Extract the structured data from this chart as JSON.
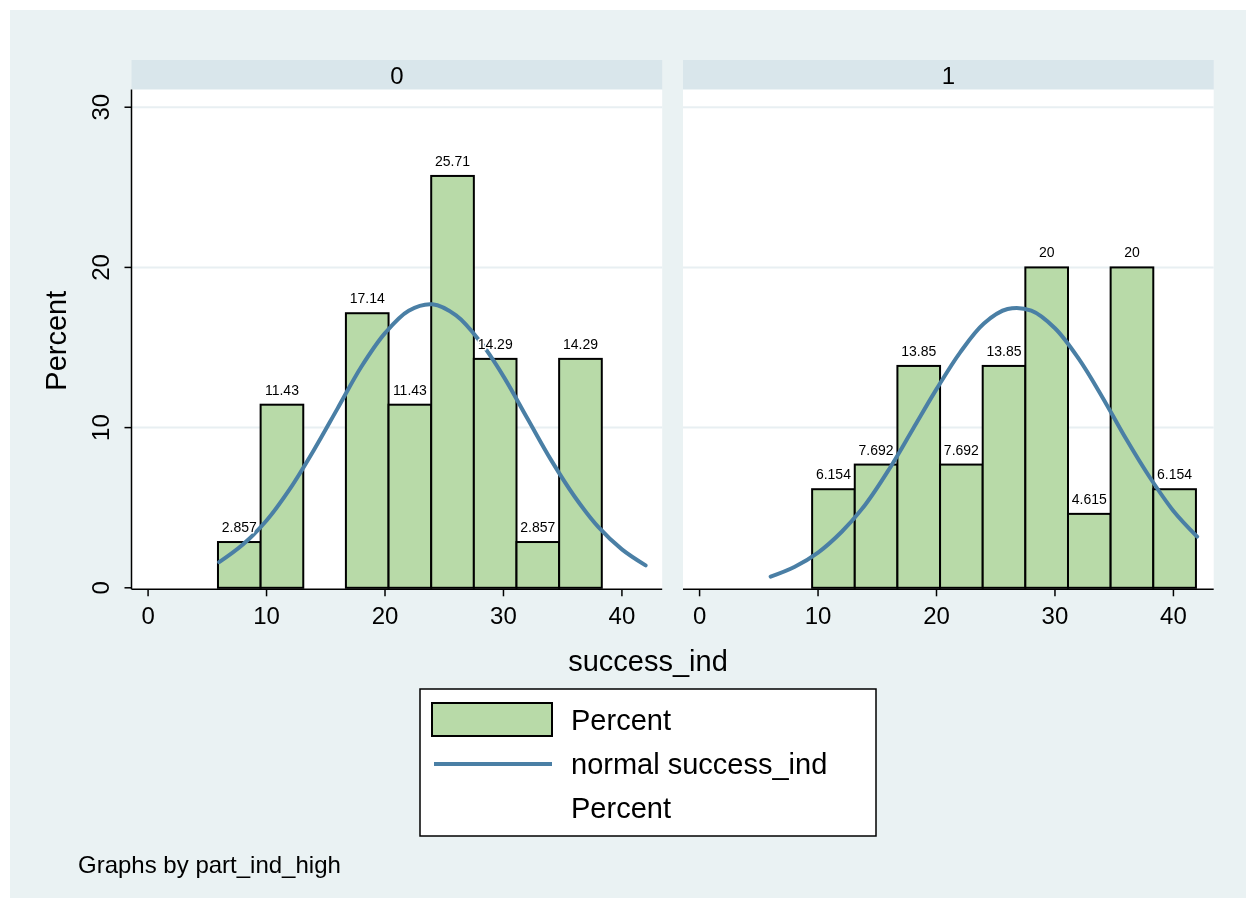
{
  "chart_data": [
    {
      "type": "histogram",
      "title": "0",
      "xlabel": "success_ind",
      "ylabel": "Percent",
      "annotations": [
        "Graphs by part_ind_high"
      ],
      "xlim": [
        -1.4,
        43.4
      ],
      "ylim": [
        0,
        31.1
      ],
      "xticks": [
        0,
        10,
        20,
        30,
        40
      ],
      "yticks": [
        0,
        10,
        20,
        30
      ],
      "grid": "y",
      "legend": "bottom",
      "bins": [
        5.9,
        9.5,
        13.1,
        16.7,
        20.3,
        23.9,
        27.5,
        31.1,
        34.7,
        38.3
      ],
      "series": [
        {
          "name": "Percent",
          "color": "#b8daa8",
          "data_labels": true,
          "values": [
            2.857,
            11.43,
            null,
            17.14,
            11.43,
            25.71,
            14.29,
            2.857,
            14.29
          ]
        },
        {
          "name": "normal success_ind",
          "type": "line",
          "color": "#4a7fa5",
          "x": [
            6,
            8,
            10,
            12,
            14,
            16,
            18,
            20,
            22,
            24,
            26,
            28,
            30,
            32,
            34,
            36,
            38,
            40,
            42
          ],
          "values": [
            1.6,
            2.7,
            4.2,
            6.2,
            8.6,
            11.2,
            13.8,
            15.9,
            17.3,
            17.7,
            17.0,
            15.4,
            13.2,
            10.6,
            8.0,
            5.7,
            3.8,
            2.4,
            1.4
          ]
        },
        {
          "name": "Percent",
          "type": "scatter",
          "marker": "none"
        }
      ]
    },
    {
      "type": "histogram",
      "title": "1",
      "xlim": [
        -1.4,
        43.4
      ],
      "ylim": [
        0,
        31.1
      ],
      "xticks": [
        0,
        10,
        20,
        30,
        40
      ],
      "yticks": [
        0,
        10,
        20,
        30
      ],
      "grid": "y",
      "tick_labels": "x",
      "bins": [
        9.5,
        13.1,
        16.7,
        20.3,
        23.9,
        27.5,
        31.1,
        34.7,
        38.3,
        41.9
      ],
      "series": [
        {
          "color": "#b8daa8",
          "data_labels": true,
          "values": [
            6.154,
            7.692,
            13.85,
            7.692,
            13.85,
            20,
            4.615,
            20,
            6.154
          ]
        },
        {
          "type": "line",
          "color": "#4a7fa5",
          "x": [
            6,
            8,
            10,
            12,
            14,
            16,
            18,
            20,
            22,
            24,
            26,
            28,
            30,
            32,
            34,
            36,
            38,
            40,
            42
          ],
          "values": [
            0.7,
            1.3,
            2.2,
            3.5,
            5.2,
            7.4,
            9.9,
            12.4,
            14.7,
            16.5,
            17.4,
            17.3,
            16.2,
            14.3,
            11.9,
            9.3,
            6.9,
            4.8,
            3.2
          ]
        }
      ]
    }
  ]
}
